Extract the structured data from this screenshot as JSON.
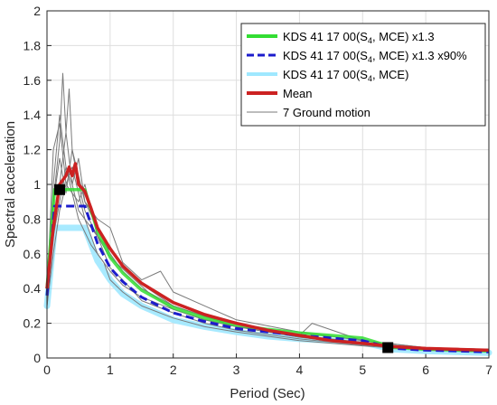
{
  "chart_data": {
    "type": "line",
    "title": "",
    "xlabel": "Period (Sec)",
    "ylabel": "Spectral acceleration",
    "xlim": [
      0,
      7
    ],
    "ylim": [
      0,
      2
    ],
    "xticks": [
      0,
      1,
      2,
      3,
      4,
      5,
      6,
      7
    ],
    "yticks": [
      0,
      0.2,
      0.4,
      0.6,
      0.8,
      1,
      1.2,
      1.4,
      1.6,
      1.8,
      2
    ],
    "grid": true,
    "legend_position": "top-right",
    "legend_entries": [
      {
        "pre": "KDS 41 17 00(S",
        "sub": "4",
        "post": ", MCE) x1.3"
      },
      {
        "pre": "KDS 41 17 00(S",
        "sub": "4",
        "post": ", MCE) x1.3 x90%"
      },
      {
        "pre": "KDS 41 17 00(S",
        "sub": "4",
        "post": ", MCE)"
      },
      {
        "pre": "Mean",
        "sub": "",
        "post": ""
      },
      {
        "pre": "7 Ground motion",
        "sub": "",
        "post": ""
      }
    ],
    "series": [
      {
        "name": "KDS 41 17 00(S4, MCE) x1.3",
        "color": "#33dd33",
        "style": "solid",
        "x": [
          0,
          0.12,
          0.6,
          0.8,
          1.0,
          1.2,
          1.5,
          2.0,
          2.5,
          3.0,
          3.5,
          4.0,
          4.5,
          5.0,
          5.5,
          6.0,
          6.5,
          7.0
        ],
        "y": [
          0.4,
          0.97,
          0.97,
          0.73,
          0.58,
          0.49,
          0.39,
          0.29,
          0.23,
          0.19,
          0.165,
          0.145,
          0.13,
          0.115,
          0.06,
          0.05,
          0.045,
          0.04
        ]
      },
      {
        "name": "KDS 41 17 00(S4, MCE) x1.3 x90%",
        "color": "#1c1ccc",
        "style": "dashed",
        "x": [
          0,
          0.12,
          0.6,
          0.8,
          1.0,
          1.2,
          1.5,
          2.0,
          2.5,
          3.0,
          3.5,
          4.0,
          4.5,
          5.0,
          5.5,
          6.0,
          6.5,
          7.0
        ],
        "y": [
          0.36,
          0.875,
          0.875,
          0.66,
          0.52,
          0.44,
          0.35,
          0.26,
          0.21,
          0.17,
          0.15,
          0.13,
          0.115,
          0.1,
          0.055,
          0.045,
          0.04,
          0.035
        ]
      },
      {
        "name": "KDS 41 17 00(S4, MCE)",
        "color": "#9fe8ff",
        "style": "solid",
        "x": [
          0,
          0.12,
          0.6,
          0.8,
          1.0,
          1.2,
          1.5,
          2.0,
          2.5,
          3.0,
          3.5,
          4.0,
          4.5,
          5.0,
          5.5,
          6.0,
          6.5,
          7.0
        ],
        "y": [
          0.3,
          0.75,
          0.75,
          0.56,
          0.45,
          0.37,
          0.3,
          0.22,
          0.18,
          0.15,
          0.125,
          0.11,
          0.1,
          0.09,
          0.05,
          0.04,
          0.035,
          0.03
        ]
      },
      {
        "name": "Mean",
        "color": "#cc2222",
        "style": "solid",
        "x": [
          0,
          0.1,
          0.2,
          0.3,
          0.35,
          0.4,
          0.45,
          0.5,
          0.6,
          0.7,
          0.8,
          1.0,
          1.2,
          1.5,
          2.0,
          2.5,
          3.0,
          3.5,
          4.0,
          4.5,
          5.0,
          5.5,
          6.0,
          6.5,
          7.0
        ],
        "y": [
          0.4,
          0.75,
          1.0,
          1.05,
          1.1,
          1.05,
          1.12,
          1.0,
          0.96,
          0.86,
          0.75,
          0.63,
          0.53,
          0.43,
          0.32,
          0.25,
          0.2,
          0.16,
          0.13,
          0.1,
          0.085,
          0.065,
          0.055,
          0.05,
          0.045
        ]
      },
      {
        "name": "7 Ground motion",
        "color": "#7a7a7a",
        "style": "solid",
        "note": "7 individual records",
        "records": [
          {
            "x": [
              0,
              0.1,
              0.2,
              0.25,
              0.3,
              0.35,
              0.4,
              0.5,
              0.6,
              0.8,
              1.0,
              1.3,
              1.6,
              2.0,
              2.5,
              3.0,
              4.0,
              5.0,
              6.0,
              7.0
            ],
            "y": [
              0.4,
              0.9,
              1.25,
              1.64,
              1.3,
              1.55,
              1.2,
              1.0,
              0.85,
              0.7,
              0.58,
              0.48,
              0.38,
              0.28,
              0.22,
              0.18,
              0.12,
              0.08,
              0.05,
              0.04
            ]
          },
          {
            "x": [
              0,
              0.1,
              0.2,
              0.3,
              0.4,
              0.5,
              0.6,
              0.8,
              1.0,
              1.3,
              1.6,
              2.0,
              2.5,
              3.0,
              4.0,
              5.0,
              6.0,
              7.0
            ],
            "y": [
              0.35,
              1.2,
              1.35,
              1.0,
              1.1,
              0.95,
              0.8,
              0.7,
              0.62,
              0.5,
              0.4,
              0.3,
              0.24,
              0.2,
              0.13,
              0.09,
              0.055,
              0.045
            ]
          },
          {
            "x": [
              0,
              0.1,
              0.2,
              0.3,
              0.4,
              0.5,
              0.6,
              0.8,
              1.0,
              1.2,
              1.5,
              1.8,
              2.0,
              2.5,
              3.0,
              4.0,
              5.0,
              6.0,
              7.0
            ],
            "y": [
              0.45,
              0.8,
              1.0,
              1.3,
              1.0,
              1.15,
              0.9,
              0.8,
              0.75,
              0.55,
              0.45,
              0.5,
              0.38,
              0.3,
              0.22,
              0.15,
              0.1,
              0.06,
              0.05
            ]
          },
          {
            "x": [
              0,
              0.1,
              0.2,
              0.3,
              0.4,
              0.5,
              0.6,
              0.8,
              1.0,
              1.2,
              1.5,
              2.0,
              2.5,
              3.0,
              3.5,
              4.0,
              4.2,
              5.0,
              6.0,
              7.0
            ],
            "y": [
              0.3,
              0.7,
              0.9,
              1.1,
              1.0,
              0.85,
              0.8,
              0.6,
              0.5,
              0.42,
              0.35,
              0.28,
              0.22,
              0.18,
              0.16,
              0.13,
              0.2,
              0.1,
              0.06,
              0.05
            ]
          },
          {
            "x": [
              0,
              0.1,
              0.2,
              0.3,
              0.4,
              0.5,
              0.7,
              0.9,
              1.0,
              1.2,
              1.5,
              2.0,
              2.5,
              3.0,
              4.0,
              5.0,
              6.0,
              7.0
            ],
            "y": [
              0.38,
              1.0,
              1.4,
              1.1,
              0.95,
              0.8,
              0.65,
              0.55,
              0.45,
              0.38,
              0.3,
              0.23,
              0.18,
              0.15,
              0.1,
              0.07,
              0.045,
              0.035
            ]
          },
          {
            "x": [
              0,
              0.1,
              0.2,
              0.3,
              0.4,
              0.5,
              0.6,
              0.8,
              1.0,
              1.2,
              1.5,
              2.0,
              2.5,
              3.0,
              4.0,
              5.0,
              6.0,
              7.0
            ],
            "y": [
              0.42,
              0.9,
              1.15,
              0.95,
              1.2,
              1.05,
              0.9,
              0.75,
              0.6,
              0.5,
              0.4,
              0.3,
              0.24,
              0.18,
              0.12,
              0.08,
              0.06,
              0.05
            ]
          },
          {
            "x": [
              0,
              0.1,
              0.2,
              0.3,
              0.4,
              0.5,
              0.6,
              0.8,
              1.0,
              1.2,
              1.5,
              2.0,
              2.5,
              3.0,
              4.0,
              5.0,
              6.0,
              7.0
            ],
            "y": [
              0.3,
              0.6,
              0.85,
              1.0,
              0.95,
              0.9,
              1.0,
              0.7,
              0.52,
              0.45,
              0.33,
              0.26,
              0.2,
              0.16,
              0.11,
              0.075,
              0.05,
              0.04
            ]
          }
        ]
      }
    ],
    "markers": [
      {
        "x": 0.2,
        "y": 0.97,
        "shape": "square",
        "color": "#000000"
      },
      {
        "x": 5.4,
        "y": 0.06,
        "shape": "square",
        "color": "#000000"
      }
    ]
  }
}
